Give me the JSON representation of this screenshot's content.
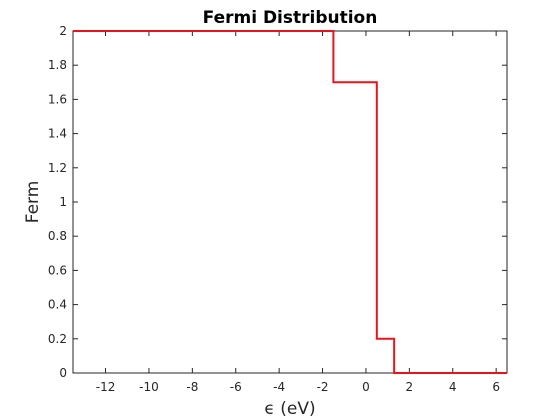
{
  "chart_data": {
    "type": "line",
    "title": "Fermi Distribution",
    "xlabel": "ϵ (eV)",
    "ylabel": "Ferm",
    "xlim": [
      -13.5,
      6.5
    ],
    "ylim": [
      0,
      2
    ],
    "xticks": [
      -12,
      -10,
      -8,
      -6,
      -4,
      -2,
      0,
      2,
      4,
      6
    ],
    "yticks": [
      0,
      0.2,
      0.4,
      0.6,
      0.8,
      1,
      1.2,
      1.4,
      1.6,
      1.8,
      2
    ],
    "ytick_labels": [
      "0",
      "0.2",
      "0.4",
      "0.6",
      "0.8",
      "1",
      "1.2",
      "1.4",
      "1.6",
      "1.8",
      "2"
    ],
    "grid": false,
    "series": [
      {
        "color": "#e8141c",
        "step": "post",
        "x": [
          -13.5,
          -1.5,
          0.5,
          1.3,
          6.5
        ],
        "y": [
          2,
          1.7,
          0.2,
          0,
          0
        ]
      }
    ]
  }
}
